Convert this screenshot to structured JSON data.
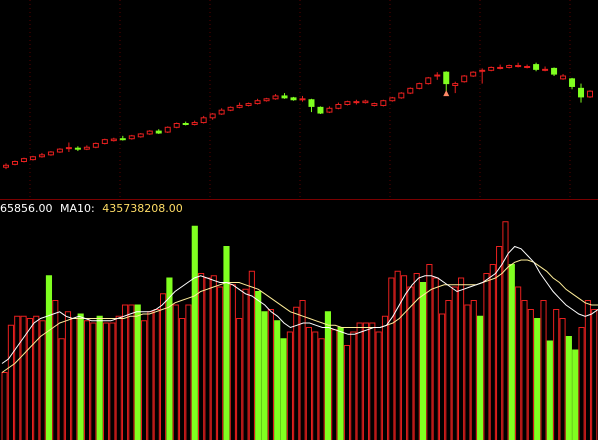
{
  "colors": {
    "background": "#000000",
    "up": "#e8201f",
    "down": "#80ff20",
    "divider": "#7a0000",
    "grid": "#5a0000",
    "ma5": "#ffffff",
    "ma10": "#ffee99",
    "label_text": "#ffffff",
    "label_value": "#ffdd66",
    "marker": "#ff8866"
  },
  "volume_label": {
    "left_value": "65856.00",
    "ma10_prefix": "MA10:",
    "ma10_value": "435738208.00"
  },
  "chart_data": [
    {
      "type": "candlestick",
      "title": "",
      "xlabel": "",
      "ylabel": "",
      "grid": true,
      "ylim": [
        0,
        100
      ],
      "candles": [
        {
          "o": 12,
          "c": 13,
          "h": 14,
          "l": 11,
          "up": true
        },
        {
          "o": 13.5,
          "c": 15,
          "h": 15.5,
          "l": 13,
          "up": true
        },
        {
          "o": 15,
          "c": 16.5,
          "h": 17,
          "l": 14.5,
          "up": true
        },
        {
          "o": 16,
          "c": 17.5,
          "h": 18,
          "l": 15.5,
          "up": true
        },
        {
          "o": 17.5,
          "c": 18.5,
          "h": 19.5,
          "l": 17,
          "up": true
        },
        {
          "o": 18.5,
          "c": 20,
          "h": 20.5,
          "l": 18,
          "up": true
        },
        {
          "o": 20,
          "c": 21.5,
          "h": 22,
          "l": 19.5,
          "up": true
        },
        {
          "o": 22,
          "c": 22.3,
          "h": 25,
          "l": 20,
          "up": true
        },
        {
          "o": 22,
          "c": 21.5,
          "h": 23,
          "l": 20.5,
          "up": false
        },
        {
          "o": 21.5,
          "c": 22.5,
          "h": 23.5,
          "l": 21,
          "up": true
        },
        {
          "o": 22.5,
          "c": 24.5,
          "h": 25,
          "l": 22,
          "up": true
        },
        {
          "o": 24.5,
          "c": 26.5,
          "h": 27,
          "l": 24,
          "up": true
        },
        {
          "o": 26,
          "c": 26.8,
          "h": 27.5,
          "l": 25.5,
          "up": true
        },
        {
          "o": 26.5,
          "c": 27,
          "h": 28.5,
          "l": 26,
          "up": false
        },
        {
          "o": 27,
          "c": 28.5,
          "h": 29,
          "l": 26.5,
          "up": true
        },
        {
          "o": 28,
          "c": 29.5,
          "h": 30,
          "l": 27.5,
          "up": true
        },
        {
          "o": 29.5,
          "c": 31,
          "h": 31.5,
          "l": 29,
          "up": true
        },
        {
          "o": 31,
          "c": 30,
          "h": 32,
          "l": 29.5,
          "up": false
        },
        {
          "o": 30.5,
          "c": 33,
          "h": 33.5,
          "l": 30,
          "up": true
        },
        {
          "o": 33,
          "c": 35,
          "h": 35.5,
          "l": 32.5,
          "up": true
        },
        {
          "o": 35,
          "c": 34.5,
          "h": 36,
          "l": 34,
          "up": false
        },
        {
          "o": 34.5,
          "c": 35.5,
          "h": 36.5,
          "l": 34,
          "up": true
        },
        {
          "o": 35.5,
          "c": 38,
          "h": 39,
          "l": 35,
          "up": true
        },
        {
          "o": 38,
          "c": 40,
          "h": 40.5,
          "l": 37,
          "up": true
        },
        {
          "o": 40,
          "c": 42,
          "h": 43,
          "l": 39.5,
          "up": true
        },
        {
          "o": 42,
          "c": 43.5,
          "h": 44,
          "l": 41.5,
          "up": true
        },
        {
          "o": 43.5,
          "c": 44.5,
          "h": 46,
          "l": 43,
          "up": true
        },
        {
          "o": 44.5,
          "c": 45.5,
          "h": 46,
          "l": 44,
          "up": true
        },
        {
          "o": 45.5,
          "c": 47,
          "h": 48,
          "l": 45,
          "up": true
        },
        {
          "o": 47,
          "c": 48,
          "h": 48.5,
          "l": 46.5,
          "up": true
        },
        {
          "o": 48,
          "c": 49.5,
          "h": 50.5,
          "l": 47.5,
          "up": true
        },
        {
          "o": 49.5,
          "c": 48.5,
          "h": 51,
          "l": 48,
          "up": false
        },
        {
          "o": 48.5,
          "c": 47.5,
          "h": 49,
          "l": 47,
          "up": false
        },
        {
          "o": 47.5,
          "c": 48,
          "h": 49.5,
          "l": 46.5,
          "up": true
        },
        {
          "o": 47.5,
          "c": 44,
          "h": 48,
          "l": 41,
          "up": false
        },
        {
          "o": 43.5,
          "c": 40.5,
          "h": 44,
          "l": 40,
          "up": false
        },
        {
          "o": 41,
          "c": 43,
          "h": 44,
          "l": 40.5,
          "up": true
        },
        {
          "o": 43,
          "c": 45,
          "h": 46,
          "l": 42.5,
          "up": true
        },
        {
          "o": 45,
          "c": 46.5,
          "h": 47,
          "l": 44.5,
          "up": true
        },
        {
          "o": 46.5,
          "c": 46.5,
          "h": 47.5,
          "l": 45,
          "up": true
        },
        {
          "o": 46,
          "c": 46.8,
          "h": 47.5,
          "l": 45.5,
          "up": true
        },
        {
          "o": 45.5,
          "c": 44.5,
          "h": 46,
          "l": 44,
          "up": true
        },
        {
          "o": 44.5,
          "c": 47,
          "h": 47.5,
          "l": 44,
          "up": true
        },
        {
          "o": 47,
          "c": 48.5,
          "h": 49,
          "l": 46.5,
          "up": true
        },
        {
          "o": 48.5,
          "c": 51,
          "h": 51.5,
          "l": 48,
          "up": true
        },
        {
          "o": 51,
          "c": 53.5,
          "h": 54,
          "l": 50.5,
          "up": true
        },
        {
          "o": 53.5,
          "c": 56,
          "h": 56.5,
          "l": 53,
          "up": true
        },
        {
          "o": 56,
          "c": 59,
          "h": 59.5,
          "l": 55.5,
          "up": true
        },
        {
          "o": 60,
          "c": 60.5,
          "h": 62,
          "l": 58,
          "up": true
        },
        {
          "o": 62,
          "c": 56,
          "h": 62.5,
          "l": 52,
          "up": false
        },
        {
          "o": 56,
          "c": 55,
          "h": 57,
          "l": 51,
          "up": true
        },
        {
          "o": 57,
          "c": 60,
          "h": 60.5,
          "l": 56.5,
          "up": true
        },
        {
          "o": 60,
          "c": 62,
          "h": 62.5,
          "l": 59.5,
          "up": true
        },
        {
          "o": 62.5,
          "c": 63,
          "h": 64,
          "l": 56,
          "up": true
        },
        {
          "o": 63,
          "c": 64.5,
          "h": 65,
          "l": 62.5,
          "up": true
        },
        {
          "o": 64.5,
          "c": 64.5,
          "h": 66,
          "l": 63.5,
          "up": true
        },
        {
          "o": 64.5,
          "c": 65.5,
          "h": 66,
          "l": 64,
          "up": true
        },
        {
          "o": 65.5,
          "c": 65.5,
          "h": 67,
          "l": 64.5,
          "up": true
        },
        {
          "o": 65,
          "c": 65,
          "h": 66,
          "l": 64,
          "up": true
        },
        {
          "o": 66,
          "c": 63.5,
          "h": 67,
          "l": 62.5,
          "up": false
        },
        {
          "o": 63,
          "c": 63.5,
          "h": 65,
          "l": 62.5,
          "up": true
        },
        {
          "o": 64,
          "c": 61,
          "h": 64.5,
          "l": 60,
          "up": false
        },
        {
          "o": 60,
          "c": 58.5,
          "h": 61,
          "l": 58,
          "up": true
        },
        {
          "o": 58.5,
          "c": 54.5,
          "h": 59,
          "l": 53,
          "up": false
        },
        {
          "o": 53.5,
          "c": 49,
          "h": 56,
          "l": 46,
          "up": false
        },
        {
          "o": 49,
          "c": 52,
          "h": 52.5,
          "l": 48.5,
          "up": true
        }
      ],
      "markers": [
        {
          "index": 49,
          "value": 51.5
        }
      ]
    },
    {
      "type": "bar",
      "title": "",
      "xlabel": "",
      "ylabel": "",
      "grid": false,
      "series_label": "MA10",
      "ylim": [
        0,
        100
      ],
      "values": [
        {
          "v": 30,
          "up": true
        },
        {
          "v": 51,
          "up": true
        },
        {
          "v": 55,
          "up": true
        },
        {
          "v": 55,
          "up": true
        },
        {
          "v": 54,
          "up": true
        },
        {
          "v": 55,
          "up": true
        },
        {
          "v": 53,
          "up": true
        },
        {
          "v": 73,
          "up": false
        },
        {
          "v": 62,
          "up": true
        },
        {
          "v": 45,
          "up": true
        },
        {
          "v": 57,
          "up": true
        },
        {
          "v": 54,
          "up": true
        },
        {
          "v": 56,
          "up": false
        },
        {
          "v": 53,
          "up": true
        },
        {
          "v": 52,
          "up": true
        },
        {
          "v": 55,
          "up": false
        },
        {
          "v": 52,
          "up": true
        },
        {
          "v": 52,
          "up": true
        },
        {
          "v": 55,
          "up": true
        },
        {
          "v": 60,
          "up": true
        },
        {
          "v": 60,
          "up": true
        },
        {
          "v": 60,
          "up": false
        },
        {
          "v": 53,
          "up": true
        },
        {
          "v": 57,
          "up": true
        },
        {
          "v": 58,
          "up": true
        },
        {
          "v": 65,
          "up": true
        },
        {
          "v": 72,
          "up": false
        },
        {
          "v": 60,
          "up": true
        },
        {
          "v": 54,
          "up": true
        },
        {
          "v": 60,
          "up": true
        },
        {
          "v": 95,
          "up": false
        },
        {
          "v": 74,
          "up": true
        },
        {
          "v": 72,
          "up": true
        },
        {
          "v": 73,
          "up": true
        },
        {
          "v": 68,
          "up": true
        },
        {
          "v": 86,
          "up": false
        },
        {
          "v": 69,
          "up": true
        },
        {
          "v": 54,
          "up": true
        },
        {
          "v": 67,
          "up": true
        },
        {
          "v": 75,
          "up": true
        },
        {
          "v": 66,
          "up": false
        },
        {
          "v": 57,
          "up": false
        },
        {
          "v": 58,
          "up": true
        },
        {
          "v": 53,
          "up": false
        },
        {
          "v": 45,
          "up": false
        },
        {
          "v": 48,
          "up": true
        },
        {
          "v": 59,
          "up": true
        },
        {
          "v": 62,
          "up": true
        },
        {
          "v": 50,
          "up": true
        },
        {
          "v": 48,
          "up": true
        },
        {
          "v": 45,
          "up": true
        },
        {
          "v": 57,
          "up": false
        },
        {
          "v": 49,
          "up": true
        },
        {
          "v": 50,
          "up": false
        },
        {
          "v": 42,
          "up": true
        },
        {
          "v": 48,
          "up": true
        },
        {
          "v": 52,
          "up": true
        },
        {
          "v": 52,
          "up": true
        },
        {
          "v": 52,
          "up": true
        },
        {
          "v": 48,
          "up": true
        },
        {
          "v": 55,
          "up": true
        },
        {
          "v": 72,
          "up": true
        },
        {
          "v": 75,
          "up": true
        },
        {
          "v": 73,
          "up": true
        },
        {
          "v": 68,
          "up": true
        },
        {
          "v": 74,
          "up": true
        },
        {
          "v": 70,
          "up": false
        },
        {
          "v": 78,
          "up": true
        },
        {
          "v": 72,
          "up": true
        },
        {
          "v": 56,
          "up": true
        },
        {
          "v": 62,
          "up": true
        },
        {
          "v": 68,
          "up": true
        },
        {
          "v": 72,
          "up": true
        },
        {
          "v": 60,
          "up": true
        },
        {
          "v": 62,
          "up": true
        },
        {
          "v": 55,
          "up": false
        },
        {
          "v": 74,
          "up": true
        },
        {
          "v": 78,
          "up": true
        },
        {
          "v": 86,
          "up": true
        },
        {
          "v": 97,
          "up": true
        },
        {
          "v": 78,
          "up": false
        },
        {
          "v": 68,
          "up": true
        },
        {
          "v": 62,
          "up": true
        },
        {
          "v": 58,
          "up": true
        },
        {
          "v": 54,
          "up": false
        },
        {
          "v": 62,
          "up": true
        },
        {
          "v": 44,
          "up": false
        },
        {
          "v": 58,
          "up": true
        },
        {
          "v": 54,
          "up": true
        },
        {
          "v": 46,
          "up": false
        },
        {
          "v": 40,
          "up": false
        },
        {
          "v": 50,
          "up": true
        },
        {
          "v": 62,
          "up": true
        },
        {
          "v": 58,
          "up": true
        }
      ],
      "ma5": [
        34,
        36,
        40,
        44,
        48,
        52,
        54,
        55,
        56,
        57,
        55,
        54,
        55,
        54,
        53,
        53,
        53,
        53,
        54,
        55,
        56,
        57,
        57,
        57,
        58,
        60,
        63,
        66,
        68,
        70,
        72,
        73,
        72,
        71,
        70,
        70,
        69,
        67,
        65,
        64,
        62,
        60,
        57,
        55,
        52,
        50,
        51,
        52,
        52,
        51,
        50,
        50,
        49,
        48,
        47,
        47,
        48,
        49,
        50,
        50,
        51,
        55,
        60,
        65,
        69,
        72,
        73,
        73,
        72,
        70,
        68,
        66,
        67,
        68,
        69,
        70,
        72,
        74,
        78,
        83,
        86,
        85,
        82,
        79,
        74,
        70,
        66,
        63,
        60,
        58,
        56,
        55,
        56,
        58
      ],
      "ma10": [
        30,
        32,
        34,
        37,
        40,
        43,
        46,
        48,
        50,
        52,
        53,
        54,
        54,
        54,
        54,
        54,
        54,
        54,
        54,
        54,
        55,
        55,
        56,
        56,
        57,
        58,
        59,
        61,
        62,
        63,
        64,
        66,
        67,
        68,
        69,
        70,
        70,
        70,
        69,
        68,
        67,
        65,
        63,
        61,
        59,
        57,
        56,
        55,
        54,
        53,
        52,
        51,
        51,
        50,
        50,
        50,
        50,
        50,
        50,
        50,
        51,
        52,
        54,
        57,
        60,
        63,
        65,
        67,
        68,
        69,
        69,
        69,
        69,
        69,
        69,
        70,
        71,
        72,
        74,
        77,
        79,
        80,
        80,
        79,
        77,
        75,
        72,
        70,
        67,
        65,
        63,
        61,
        60,
        60
      ]
    }
  ]
}
